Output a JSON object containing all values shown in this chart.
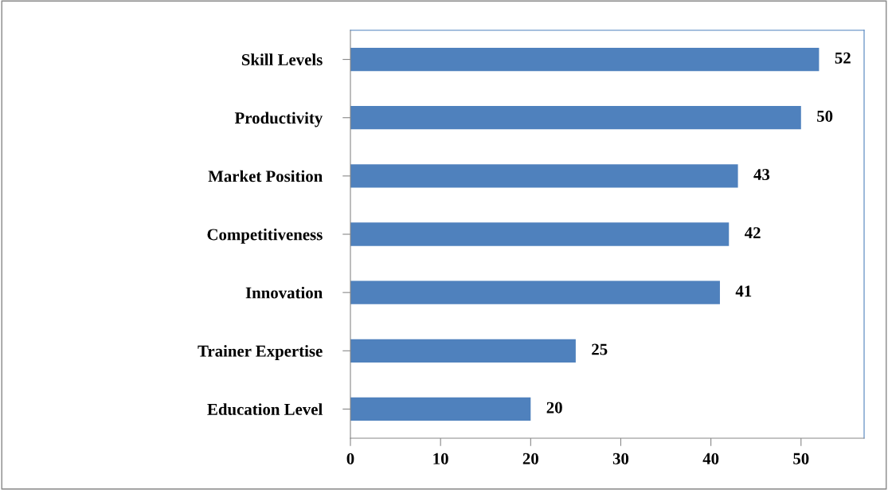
{
  "chart_data": {
    "type": "bar",
    "orientation": "horizontal",
    "categories": [
      "Skill Levels",
      "Productivity",
      "Market Position",
      "Competitiveness",
      "Innovation",
      "Trainer Expertise",
      "Education Level"
    ],
    "values": [
      52,
      50,
      43,
      42,
      41,
      25,
      20
    ],
    "color": "#4f81bd",
    "xlim": [
      0,
      57
    ],
    "xticks": [
      0,
      10,
      20,
      30,
      40,
      50
    ],
    "data_labels": true,
    "grid": false,
    "legend": false
  }
}
